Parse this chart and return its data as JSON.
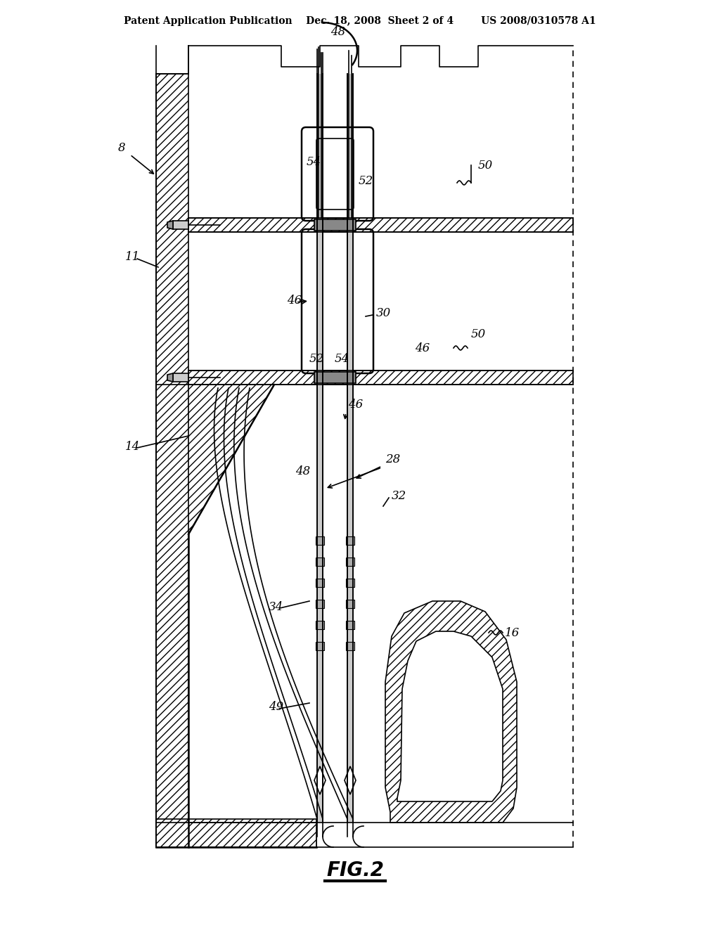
{
  "header": "Patent Application Publication    Dec. 18, 2008  Sheet 2 of 4        US 2008/0310578 A1",
  "fig_label": "FIG.2",
  "bg": "#ffffff",
  "lc": "#000000",
  "gray": "#aaaaaa",
  "darkgray": "#666666"
}
